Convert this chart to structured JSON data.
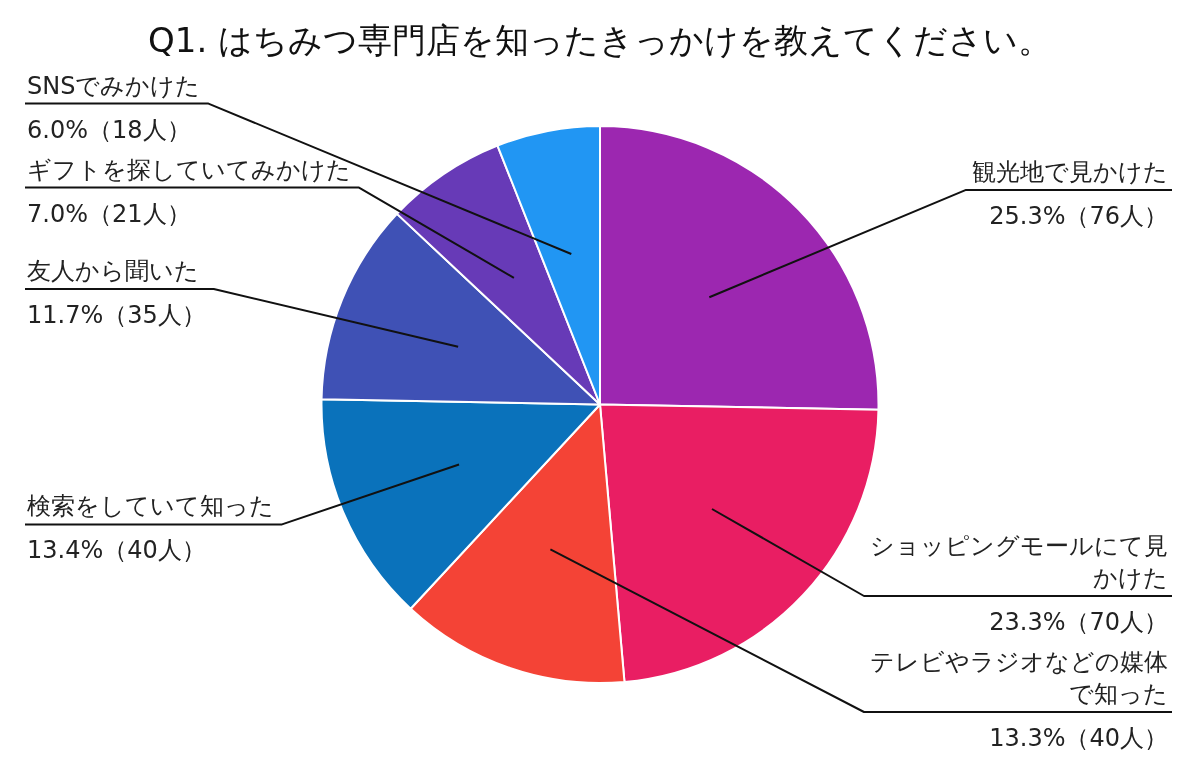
{
  "chart_data": {
    "type": "pie",
    "title": "Q1. はちみつ専門店を知ったきっかけを教えてください。",
    "categories": [
      "観光地で見かけた",
      "ショッピングモールにて見かけた",
      "テレビやラジオなどの媒体で知った",
      "検索をしていて知った",
      "友人から聞いた",
      "ギフトを探していてみかけた",
      "SNSでみかけた"
    ],
    "values": [
      25.3,
      23.3,
      13.3,
      13.4,
      11.7,
      7.0,
      6.0
    ],
    "colors": [
      "#9c27b0",
      "#e91e63",
      "#f44336",
      "#0a72bb",
      "#3f51b5",
      "#673ab7",
      "#2196f3"
    ],
    "value_labels": [
      "25.3%（76人）",
      "23.3%（70人）",
      "13.3%（40人）",
      "13.4%（40人）",
      "11.7%（35人）",
      "7.0%（21人）",
      "6.0%（18人）"
    ]
  }
}
